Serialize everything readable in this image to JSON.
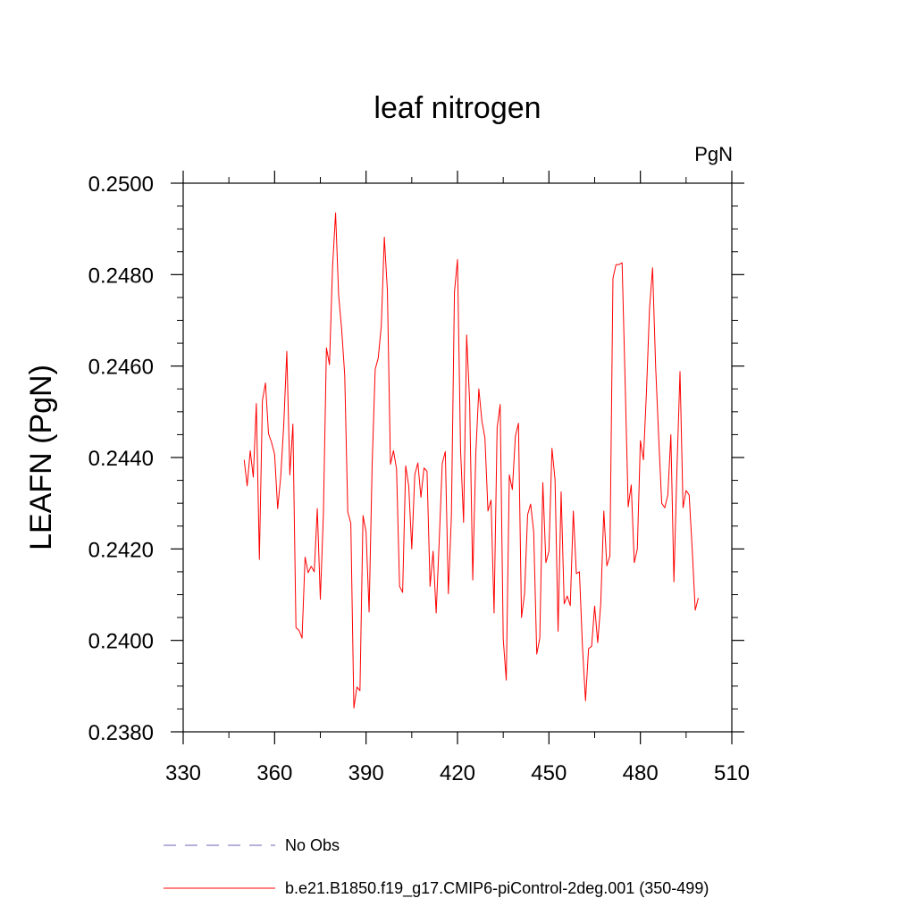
{
  "chart_data": {
    "type": "line",
    "title": "leaf nitrogen",
    "units": "PgN",
    "ylabel": "LEAFN  (PgN)",
    "xlabel": "",
    "xlim": [
      330,
      510
    ],
    "ylim": [
      0.238,
      0.25
    ],
    "xticks": [
      330,
      360,
      390,
      420,
      450,
      480,
      510
    ],
    "xtick_labels": [
      "330",
      "360",
      "390",
      "420",
      "450",
      "480",
      "510"
    ],
    "yticks": [
      0.238,
      0.24,
      0.242,
      0.244,
      0.246,
      0.248,
      0.25
    ],
    "ytick_labels": [
      "0.2380",
      "0.2400",
      "0.2420",
      "0.2440",
      "0.2460",
      "0.2480",
      "0.2500"
    ],
    "grid": false,
    "legend_position": "bottom",
    "series": [
      {
        "name": "b.e21.B1850.f19_g17.CMIP6-piControl-2deg.001 (350-499)",
        "color": "#ff0000",
        "style": "solid",
        "x": [
          350,
          351,
          352,
          353,
          354,
          355,
          356,
          357,
          358,
          359,
          360,
          361,
          362,
          363,
          364,
          365,
          366,
          367,
          368,
          369,
          370,
          371,
          372,
          373,
          374,
          375,
          376,
          377,
          378,
          379,
          380,
          381,
          382,
          383,
          384,
          385,
          386,
          387,
          388,
          389,
          390,
          391,
          392,
          393,
          394,
          395,
          396,
          397,
          398,
          399,
          400,
          401,
          402,
          403,
          404,
          405,
          406,
          407,
          408,
          409,
          410,
          411,
          412,
          413,
          414,
          415,
          416,
          417,
          418,
          419,
          420,
          421,
          422,
          423,
          424,
          425,
          426,
          427,
          428,
          429,
          430,
          431,
          432,
          433,
          434,
          435,
          436,
          437,
          438,
          439,
          440,
          441,
          442,
          443,
          444,
          445,
          446,
          447,
          448,
          449,
          450,
          451,
          452,
          453,
          454,
          455,
          456,
          457,
          458,
          459,
          460,
          461,
          462,
          463,
          464,
          465,
          466,
          467,
          468,
          469,
          470,
          471,
          472,
          473,
          474,
          475,
          476,
          477,
          478,
          479,
          480,
          481,
          482,
          483,
          484,
          485,
          486,
          487,
          488,
          489,
          490,
          491,
          492,
          493,
          494,
          495,
          496,
          497,
          498,
          499
        ],
        "y": [
          0.24395,
          0.24338,
          0.24415,
          0.24357,
          0.24518,
          0.24177,
          0.24525,
          0.24563,
          0.24452,
          0.24433,
          0.24407,
          0.24288,
          0.24358,
          0.24472,
          0.24632,
          0.24362,
          0.24473,
          0.24028,
          0.24022,
          0.24005,
          0.24182,
          0.24148,
          0.24162,
          0.2415,
          0.24288,
          0.2409,
          0.24275,
          0.2464,
          0.24603,
          0.24815,
          0.24935,
          0.24755,
          0.2468,
          0.2458,
          0.24281,
          0.24256,
          0.23852,
          0.23898,
          0.2389,
          0.24273,
          0.24237,
          0.24062,
          0.24385,
          0.24593,
          0.24618,
          0.24688,
          0.24882,
          0.24765,
          0.24385,
          0.24415,
          0.24375,
          0.24118,
          0.24105,
          0.24382,
          0.24338,
          0.242,
          0.24363,
          0.24388,
          0.24313,
          0.24377,
          0.2437,
          0.24118,
          0.24195,
          0.2406,
          0.24217,
          0.24387,
          0.24413,
          0.24102,
          0.24272,
          0.24762,
          0.24833,
          0.24418,
          0.24258,
          0.24668,
          0.2452,
          0.24132,
          0.24408,
          0.2455,
          0.2448,
          0.24443,
          0.24283,
          0.24307,
          0.2406,
          0.24465,
          0.24516,
          0.24003,
          0.23913,
          0.24362,
          0.2433,
          0.24447,
          0.24475,
          0.2405,
          0.24102,
          0.24275,
          0.24298,
          0.24237,
          0.2397,
          0.24005,
          0.24345,
          0.2417,
          0.24195,
          0.2442,
          0.24352,
          0.2402,
          0.24325,
          0.2408,
          0.24097,
          0.24076,
          0.24283,
          0.24146,
          0.2415,
          0.23986,
          0.23868,
          0.23982,
          0.23987,
          0.24075,
          0.23995,
          0.2408,
          0.24283,
          0.24163,
          0.24185,
          0.24792,
          0.24822,
          0.24822,
          0.24826,
          0.24565,
          0.24292,
          0.2434,
          0.2417,
          0.242,
          0.24437,
          0.24395,
          0.24545,
          0.24725,
          0.24815,
          0.246,
          0.24445,
          0.243,
          0.2429,
          0.24318,
          0.2445,
          0.24128,
          0.24375,
          0.24588,
          0.2429,
          0.24328,
          0.24318,
          0.242,
          0.24066,
          0.24093
        ]
      }
    ],
    "legend": [
      {
        "label": "No Obs",
        "color": "#6b63b5",
        "style": "dashed"
      },
      {
        "label": "b.e21.B1850.f19_g17.CMIP6-piControl-2deg.001 (350-499)",
        "color": "#ff0000",
        "style": "solid"
      }
    ]
  }
}
